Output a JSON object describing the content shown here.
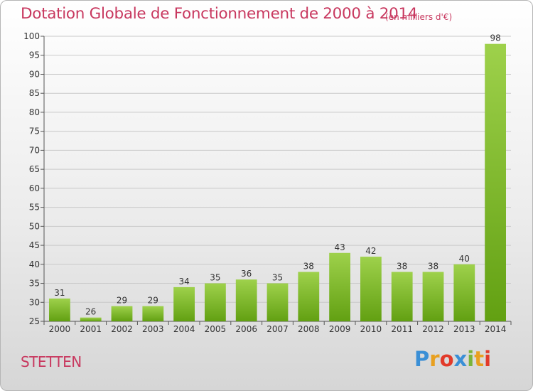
{
  "header": {
    "title": "Dotation Globale de Fonctionnement de 2000 à 2014",
    "unit": "(en milliers d'€)"
  },
  "footer": {
    "commune": "STETTEN",
    "logo_text": "Proxiti",
    "logo_colors": [
      "#3a8fd6",
      "#e8a020",
      "#e23a2a",
      "#3a8fd6",
      "#7ab43a",
      "#e8a020",
      "#e23a2a"
    ]
  },
  "chart_data": {
    "type": "bar",
    "categories": [
      "2000",
      "2001",
      "2002",
      "2003",
      "2004",
      "2005",
      "2006",
      "2007",
      "2008",
      "2009",
      "2010",
      "2011",
      "2012",
      "2013",
      "2014"
    ],
    "values": [
      31,
      26,
      29,
      29,
      34,
      35,
      36,
      35,
      38,
      43,
      42,
      38,
      38,
      40,
      98
    ],
    "title": "Dotation Globale de Fonctionnement de 2000 à 2014",
    "ylim": [
      25,
      100
    ],
    "yticks": [
      25,
      30,
      35,
      40,
      45,
      50,
      55,
      60,
      65,
      70,
      75,
      80,
      85,
      90,
      95,
      100
    ],
    "grid": true,
    "bar_color_top": "#9ed14b",
    "bar_color_bottom": "#62a012"
  }
}
